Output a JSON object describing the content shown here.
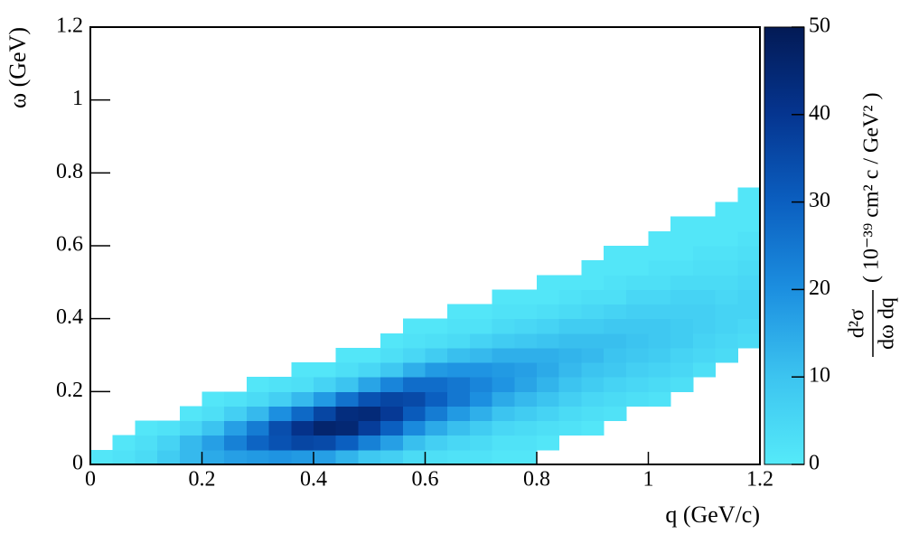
{
  "chart_data": {
    "type": "heatmap",
    "xlabel": "q (GeV/c)",
    "ylabel": "ω (GeV)",
    "zlabel_numerator": "d²σ",
    "zlabel_denominator": "dω dq",
    "zlabel_units": "( 10⁻³⁹ cm² c / GeV² )",
    "xlim": [
      0,
      1.2
    ],
    "ylim": [
      0,
      1.2
    ],
    "zlim": [
      0,
      50
    ],
    "xticks": [
      0,
      0.2,
      0.4,
      0.6,
      0.8,
      1,
      1.2
    ],
    "yticks": [
      0,
      0.2,
      0.4,
      0.6,
      0.8,
      1,
      1.2
    ],
    "zticks": [
      0,
      10,
      20,
      30,
      40,
      50
    ],
    "colorscale": [
      "#55eaf9",
      "#3cc4f0",
      "#1c8fe0",
      "#0b5fc0",
      "#053590",
      "#031a55"
    ],
    "x_bins": [
      0,
      0.04,
      0.08,
      0.12,
      0.16,
      0.2,
      0.24,
      0.28,
      0.32,
      0.36,
      0.4,
      0.44,
      0.48,
      0.52,
      0.56,
      0.6,
      0.64,
      0.68,
      0.72,
      0.76,
      0.8,
      0.84,
      0.88,
      0.92,
      0.96,
      1,
      1.04,
      1.08,
      1.12,
      1.16,
      1.2
    ],
    "y_bins": [
      0,
      0.04,
      0.08,
      0.12,
      0.16,
      0.2,
      0.24,
      0.28,
      0.32,
      0.36,
      0.4,
      0.44,
      0.48,
      0.52,
      0.56,
      0.6,
      0.64,
      0.68,
      0.72,
      0.76,
      0.8
    ],
    "z": [
      [
        1,
        null,
        null,
        null,
        null,
        null,
        null,
        null,
        null,
        null,
        null,
        null,
        null,
        null,
        null,
        null,
        null,
        null,
        null,
        null
      ],
      [
        2,
        1,
        null,
        null,
        null,
        null,
        null,
        null,
        null,
        null,
        null,
        null,
        null,
        null,
        null,
        null,
        null,
        null,
        null,
        null
      ],
      [
        4,
        3,
        1,
        null,
        null,
        null,
        null,
        null,
        null,
        null,
        null,
        null,
        null,
        null,
        null,
        null,
        null,
        null,
        null,
        null
      ],
      [
        8,
        6,
        2,
        null,
        null,
        null,
        null,
        null,
        null,
        null,
        null,
        null,
        null,
        null,
        null,
        null,
        null,
        null,
        null,
        null
      ],
      [
        12,
        12,
        5,
        1,
        null,
        null,
        null,
        null,
        null,
        null,
        null,
        null,
        null,
        null,
        null,
        null,
        null,
        null,
        null,
        null
      ],
      [
        15,
        17,
        10,
        3,
        1,
        null,
        null,
        null,
        null,
        null,
        null,
        null,
        null,
        null,
        null,
        null,
        null,
        null,
        null,
        null
      ],
      [
        17,
        23,
        17,
        7,
        2,
        null,
        null,
        null,
        null,
        null,
        null,
        null,
        null,
        null,
        null,
        null,
        null,
        null,
        null,
        null
      ],
      [
        18,
        29,
        24,
        12,
        4,
        1,
        null,
        null,
        null,
        null,
        null,
        null,
        null,
        null,
        null,
        null,
        null,
        null,
        null,
        null
      ],
      [
        19,
        33,
        34,
        20,
        7,
        2,
        null,
        null,
        null,
        null,
        null,
        null,
        null,
        null,
        null,
        null,
        null,
        null,
        null,
        null
      ],
      [
        18,
        36,
        41,
        28,
        12,
        3,
        1,
        null,
        null,
        null,
        null,
        null,
        null,
        null,
        null,
        null,
        null,
        null,
        null,
        null
      ],
      [
        17,
        35,
        46,
        36,
        18,
        6,
        1,
        null,
        null,
        null,
        null,
        null,
        null,
        null,
        null,
        null,
        null,
        null,
        null,
        null
      ],
      [
        13,
        30,
        45,
        43,
        26,
        10,
        3,
        1,
        null,
        null,
        null,
        null,
        null,
        null,
        null,
        null,
        null,
        null,
        null,
        null
      ],
      [
        9,
        23,
        38,
        44,
        33,
        16,
        5,
        1,
        null,
        null,
        null,
        null,
        null,
        null,
        null,
        null,
        null,
        null,
        null,
        null
      ],
      [
        7,
        17,
        30,
        39,
        36,
        22,
        9,
        3,
        1,
        null,
        null,
        null,
        null,
        null,
        null,
        null,
        null,
        null,
        null,
        null
      ],
      [
        4,
        11,
        21,
        31,
        35,
        27,
        14,
        5,
        2,
        1,
        null,
        null,
        null,
        null,
        null,
        null,
        null,
        null,
        null,
        null
      ],
      [
        3,
        7,
        15,
        24,
        30,
        27,
        18,
        8,
        3,
        1,
        null,
        null,
        null,
        null,
        null,
        null,
        null,
        null,
        null,
        null
      ],
      [
        2,
        5,
        11,
        18,
        25,
        25,
        19,
        11,
        4,
        2,
        1,
        null,
        null,
        null,
        null,
        null,
        null,
        null,
        null,
        null
      ],
      [
        2,
        4,
        8,
        14,
        20,
        22,
        19,
        12,
        6,
        2,
        1,
        null,
        null,
        null,
        null,
        null,
        null,
        null,
        null,
        null
      ],
      [
        1,
        2,
        5,
        10,
        15,
        19,
        18,
        14,
        8,
        4,
        2,
        1,
        null,
        null,
        null,
        null,
        null,
        null,
        null,
        null
      ],
      [
        1,
        2,
        4,
        8,
        12,
        16,
        17,
        14,
        9,
        5,
        2,
        1,
        null,
        null,
        null,
        null,
        null,
        null,
        null,
        null
      ],
      [
        null,
        1,
        3,
        6,
        10,
        13,
        15,
        14,
        10,
        6,
        3,
        1,
        1,
        null,
        null,
        null,
        null,
        null,
        null,
        null
      ],
      [
        null,
        null,
        2,
        4,
        7,
        10,
        12,
        13,
        11,
        8,
        4,
        2,
        1,
        null,
        null,
        null,
        null,
        null,
        null,
        null
      ],
      [
        null,
        null,
        1,
        3,
        5,
        8,
        10,
        12,
        11,
        8,
        5,
        3,
        1,
        1,
        null,
        null,
        null,
        null,
        null,
        null
      ],
      [
        null,
        null,
        null,
        2,
        4,
        6,
        9,
        10,
        11,
        9,
        6,
        3,
        2,
        1,
        1,
        null,
        null,
        null,
        null,
        null
      ],
      [
        null,
        null,
        null,
        null,
        3,
        5,
        7,
        9,
        10,
        9,
        7,
        5,
        3,
        1,
        1,
        null,
        null,
        null,
        null,
        null
      ],
      [
        null,
        null,
        null,
        null,
        2,
        4,
        6,
        8,
        9,
        9,
        7,
        5,
        3,
        2,
        1,
        1,
        null,
        null,
        null,
        null
      ],
      [
        null,
        null,
        null,
        null,
        null,
        3,
        5,
        6,
        8,
        8,
        7,
        6,
        4,
        2,
        1,
        1,
        1,
        null,
        null,
        null
      ],
      [
        null,
        null,
        null,
        null,
        null,
        null,
        3,
        5,
        6,
        7,
        7,
        6,
        4,
        3,
        2,
        1,
        1,
        null,
        null,
        null
      ],
      [
        null,
        null,
        null,
        null,
        null,
        null,
        null,
        4,
        5,
        6,
        6,
        5,
        4,
        3,
        2,
        1,
        1,
        1,
        null,
        null
      ],
      [
        null,
        null,
        null,
        null,
        null,
        null,
        null,
        null,
        4,
        5,
        6,
        6,
        5,
        4,
        3,
        2,
        1,
        1,
        1,
        null
      ]
    ]
  }
}
